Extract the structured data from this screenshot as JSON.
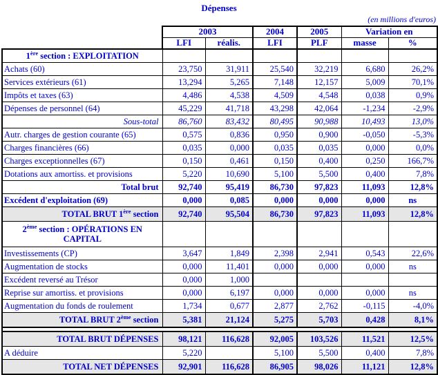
{
  "title": "Dépenses",
  "unit_note": "(en millions d'euros)",
  "colors": {
    "text_blue": "#0000CC",
    "border_black": "#000000",
    "total_row_gray": "#E6E6E6"
  },
  "chart_data": {
    "type": "table",
    "title": "Dépenses",
    "unit": "en millions d'euros",
    "columns": [
      "2003 LFI",
      "2003 réalis.",
      "2004 LFI",
      "2005 PLF",
      "Variation en masse",
      "Variation en %"
    ]
  },
  "table": {
    "header": {
      "groups": [
        {
          "label": "2003",
          "span": 2
        },
        {
          "label": "2004",
          "span": 1
        },
        {
          "label": "2005",
          "span": 1
        },
        {
          "label": "Variation en",
          "span": 2
        }
      ],
      "sub_columns": [
        "LFI",
        "réalis.",
        "LFI",
        "PLF",
        "masse",
        "%"
      ]
    },
    "rows": [
      {
        "type": "section",
        "label": "1^{ère} section : EXPLOITATION",
        "values": [
          "",
          "",
          "",
          "",
          "",
          ""
        ]
      },
      {
        "type": "data",
        "label": "Achats (60)",
        "values": [
          "23,750",
          "31,911",
          "25,540",
          "32,219",
          "6,680",
          "26,2%"
        ]
      },
      {
        "type": "data",
        "label": "Services extérieurs (61)",
        "values": [
          "13,294",
          "5,265",
          "7,148",
          "12,157",
          "5,009",
          "70,1%"
        ]
      },
      {
        "type": "data",
        "label": "Impôts et taxes (63)",
        "values": [
          "4,486",
          "4,538",
          "4,509",
          "4,548",
          "0,038",
          "0,9%"
        ]
      },
      {
        "type": "data",
        "label": "Dépenses de personnel (64)",
        "values": [
          "45,229",
          "41,718",
          "43,298",
          "42,064",
          "-1,234",
          "-2,9%"
        ]
      },
      {
        "type": "subtotal",
        "label": "Sous-total",
        "values": [
          "86,760",
          "83,432",
          "80,495",
          "90,988",
          "10,493",
          "13,0%"
        ]
      },
      {
        "type": "data",
        "label": "Autr. charges de gestion courante (65)",
        "values": [
          "0,575",
          "0,836",
          "0,950",
          "0,900",
          "-0,050",
          "-5,3%"
        ]
      },
      {
        "type": "data",
        "label": "Charges financières (66)",
        "values": [
          "0,035",
          "0,000",
          "0,035",
          "0,035",
          "0,000",
          "0,0%"
        ]
      },
      {
        "type": "data",
        "label": "Charges exceptionnelles (67)",
        "values": [
          "0,150",
          "0,461",
          "0,150",
          "0,400",
          "0,250",
          "166,7%"
        ]
      },
      {
        "type": "data",
        "label": "Dotations aux amortiss. et provisions",
        "values": [
          "5,220",
          "10,690",
          "5,100",
          "5,500",
          "0,400",
          "7,8%"
        ]
      },
      {
        "type": "total",
        "label": "Total brut",
        "values": [
          "92,740",
          "95,419",
          "86,730",
          "97,823",
          "11,093",
          "12,8%"
        ]
      },
      {
        "type": "boldrow",
        "label": "Excédent d'exploitation (69)",
        "values": [
          "0,000",
          "0,085",
          "0,000",
          "0,000",
          "0,000",
          "ns"
        ]
      },
      {
        "type": "graytotal",
        "label": "TOTAL BRUT 1^{ère} section",
        "values": [
          "92,740",
          "95,504",
          "86,730",
          "97,823",
          "11,093",
          "12,8%"
        ]
      },
      {
        "type": "section2",
        "label": "2^{ème} section : OPÉRATIONS EN CAPITAL",
        "values": [
          "",
          "",
          "",
          "",
          "",
          ""
        ]
      },
      {
        "type": "data",
        "label": "Investissements (CP)",
        "values": [
          "3,647",
          "1,849",
          "2,398",
          "2,941",
          "0,543",
          "22,6%"
        ]
      },
      {
        "type": "data",
        "label": "Augmentation de stocks",
        "values": [
          "0,000",
          "11,401",
          "0,000",
          "0,000",
          "0,000",
          "ns"
        ]
      },
      {
        "type": "data",
        "label": "Excédent reversé au Trésor",
        "values": [
          "0,000",
          "1,000",
          "",
          "",
          "",
          ""
        ]
      },
      {
        "type": "data",
        "label": "Reprise sur amortiss. et provisions",
        "values": [
          "0,000",
          "6,197",
          "0,000",
          "0,000",
          "0,000",
          "ns"
        ]
      },
      {
        "type": "data",
        "label": "Augmentation du fonds de roulement",
        "values": [
          "1,734",
          "0,677",
          "2,877",
          "2,762",
          "-0,115",
          "-4,0%"
        ]
      },
      {
        "type": "graytotal",
        "label": "TOTAL BRUT 2^{ème} section",
        "values": [
          "5,381",
          "21,124",
          "5,275",
          "5,703",
          "0,428",
          "8,1%"
        ]
      },
      {
        "type": "spacer",
        "label": "",
        "values": [
          "",
          "",
          "",
          "",
          "",
          ""
        ]
      },
      {
        "type": "graytotal",
        "label": "TOTAL BRUT DÉPENSES",
        "values": [
          "98,121",
          "116,628",
          "92,005",
          "103,526",
          "11,521",
          "12,5%"
        ]
      },
      {
        "type": "data",
        "label": "A déduire",
        "values": [
          "5,220",
          "",
          "5,100",
          "5,500",
          "0,400",
          "7,8%"
        ]
      },
      {
        "type": "graytotal",
        "label": "TOTAL NET DÉPENSES",
        "values": [
          "92,901",
          "116,628",
          "86,905",
          "98,026",
          "11,121",
          "12,8%"
        ]
      }
    ]
  }
}
